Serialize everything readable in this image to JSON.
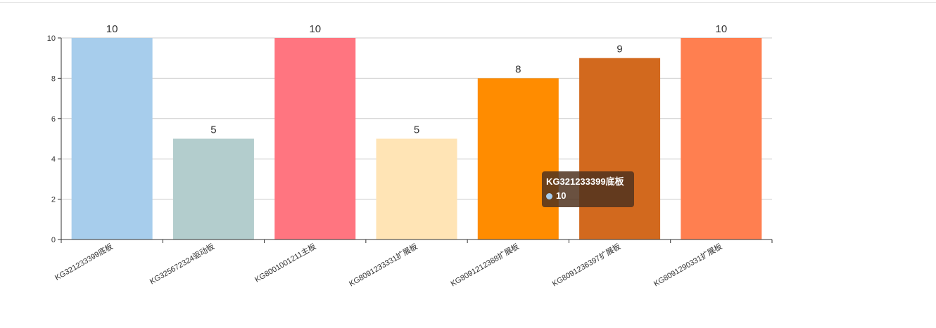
{
  "chart_data": {
    "type": "bar",
    "categories": [
      "KG321233399底板",
      "KG325672324驱动板",
      "KG8001001211主板",
      "KG8091233331扩展板",
      "KG8091212388扩展板",
      "KG8091236397扩展板",
      "KG8091290331扩展板"
    ],
    "values": [
      10,
      5,
      10,
      5,
      8,
      9,
      10
    ],
    "colors": [
      "#a7cdec",
      "#b3cdcd",
      "#ff7580",
      "#ffe4b5",
      "#ff8c00",
      "#d2691e",
      "#ff7f50"
    ],
    "ylim": [
      0,
      10
    ],
    "yticks": [
      0,
      2,
      4,
      6,
      8,
      10
    ],
    "grid": true,
    "title": "",
    "xlabel": "",
    "ylabel": ""
  },
  "tooltip": {
    "title": "KG321233399底板",
    "value": "10",
    "marker_color": "#a7cdec"
  }
}
